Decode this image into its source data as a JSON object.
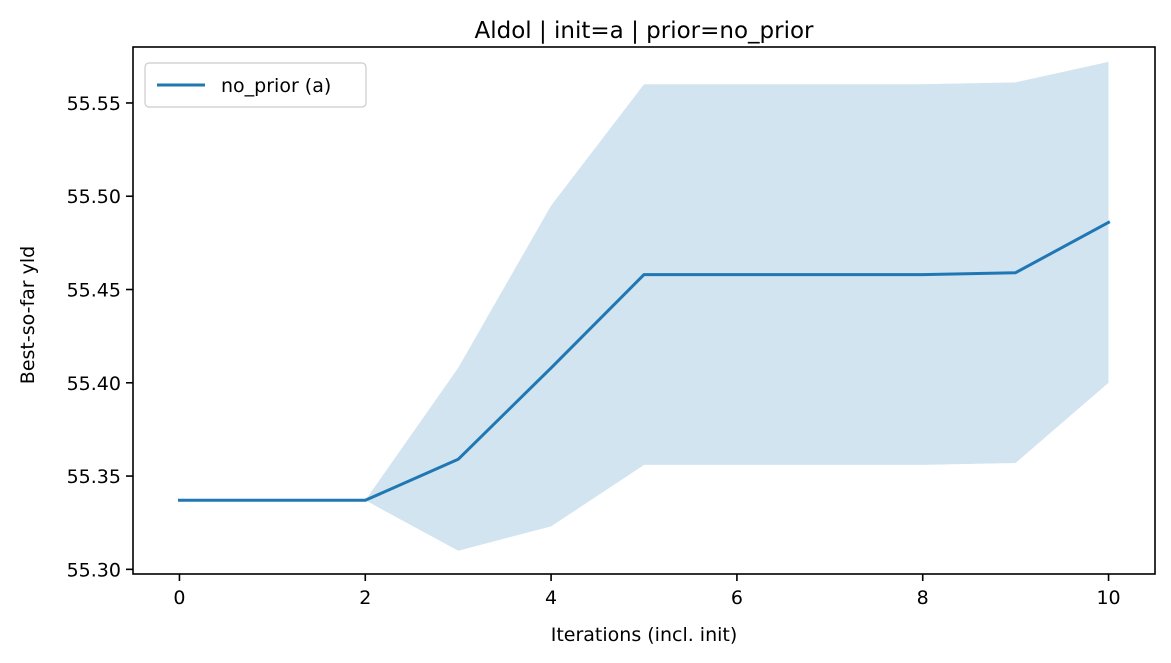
{
  "chart_data": {
    "type": "line",
    "title": "Aldol | init=a | prior=no_prior",
    "xlabel": "Iterations (incl. init)",
    "ylabel": "Best-so-far yld",
    "xlim": [
      -0.5,
      10.5
    ],
    "ylim": [
      55.2975,
      55.58
    ],
    "xticks": [
      0,
      2,
      4,
      6,
      8,
      10
    ],
    "yticks": [
      55.3,
      55.35,
      55.4,
      55.45,
      55.5,
      55.55
    ],
    "grid": false,
    "legend": {
      "position": "top-left",
      "entries": [
        "no_prior (a)"
      ]
    },
    "series": [
      {
        "name": "no_prior (a)",
        "color": "#1f77b4",
        "x": [
          0,
          1,
          2,
          3,
          4,
          5,
          6,
          7,
          8,
          9,
          10
        ],
        "y": [
          55.337,
          55.337,
          55.337,
          55.359,
          55.408,
          55.458,
          55.458,
          55.458,
          55.458,
          55.459,
          55.486
        ],
        "band_lower": [
          55.337,
          55.337,
          55.337,
          55.31,
          55.323,
          55.356,
          55.356,
          55.356,
          55.356,
          55.357,
          55.4
        ],
        "band_upper": [
          55.337,
          55.337,
          55.337,
          55.408,
          55.495,
          55.56,
          55.56,
          55.56,
          55.56,
          55.561,
          55.572
        ],
        "band_color": "#1f77b4",
        "band_opacity": 0.2
      }
    ]
  }
}
